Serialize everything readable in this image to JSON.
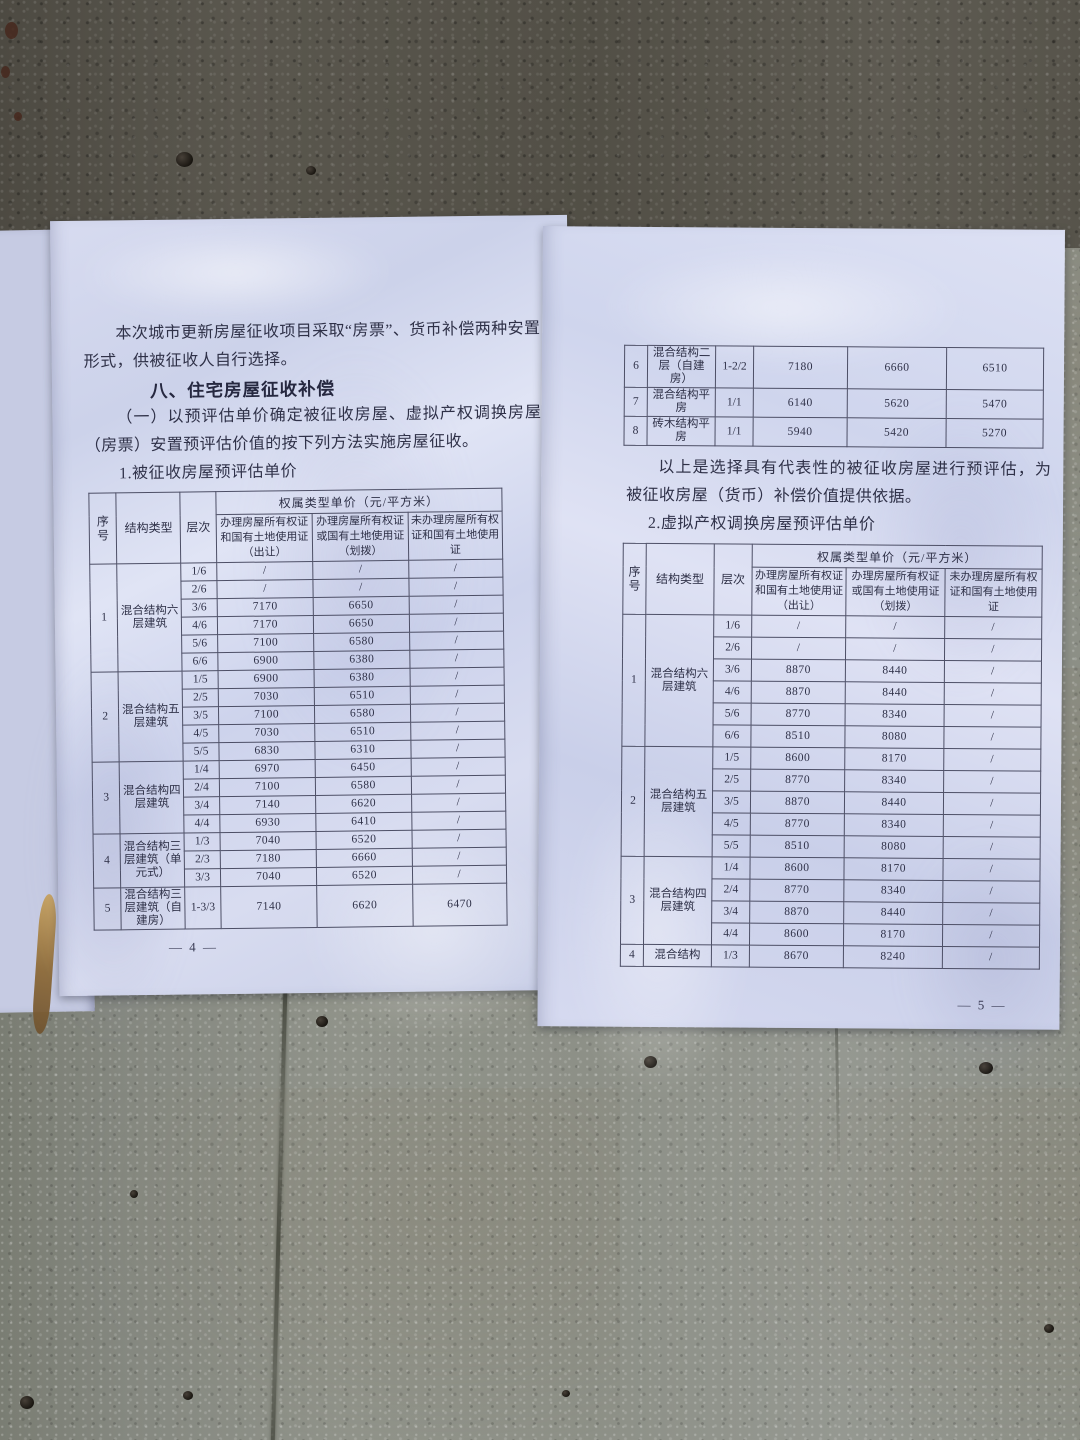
{
  "left_page": {
    "intro_paragraph": "本次城市更新房屋征收项目采取“房票”、货币补偿两种安置形式，供被征收人自行选择。",
    "section_heading": "八、住宅房屋征收补偿",
    "subsection_paragraph": "（一）以预评估单价确定被征收房屋、虚拟产权调换房屋（房票）安置预评估价值的按下列方法实施房屋征收。",
    "table1_title": "1.被征收房屋预评估单价",
    "page_number": "— 4 —"
  },
  "right_page": {
    "note_paragraph": "以上是选择具有代表性的被征收房屋进行预评估，为被征收房屋（货币）补偿价值提供依据。",
    "table2_title": "2.虚拟产权调换房屋预评估单价",
    "page_number": "— 5 —"
  },
  "table_header": {
    "seq": "序号",
    "type": "结构类型",
    "floor": "层次",
    "price_group": "权属类型单价（元/平方米）",
    "col_deed_both": "办理房屋所有权证和国有土地使用证（出让）",
    "col_deed_either": "办理房屋所有权证或国有土地使用证（划拨）",
    "col_deed_none": "未办理房屋所有权证和国有土地使用证"
  },
  "table1_groups": [
    {
      "seq": "1",
      "type": "混合结构六层建筑",
      "rows": [
        [
          "1/6",
          "/",
          "/",
          "/"
        ],
        [
          "2/6",
          "/",
          "/",
          "/"
        ],
        [
          "3/6",
          "7170",
          "6650",
          "/"
        ],
        [
          "4/6",
          "7170",
          "6650",
          "/"
        ],
        [
          "5/6",
          "7100",
          "6580",
          "/"
        ],
        [
          "6/6",
          "6900",
          "6380",
          "/"
        ]
      ]
    },
    {
      "seq": "2",
      "type": "混合结构五层建筑",
      "rows": [
        [
          "1/5",
          "6900",
          "6380",
          "/"
        ],
        [
          "2/5",
          "7030",
          "6510",
          "/"
        ],
        [
          "3/5",
          "7100",
          "6580",
          "/"
        ],
        [
          "4/5",
          "7030",
          "6510",
          "/"
        ],
        [
          "5/5",
          "6830",
          "6310",
          "/"
        ]
      ]
    },
    {
      "seq": "3",
      "type": "混合结构四层建筑",
      "rows": [
        [
          "1/4",
          "6970",
          "6450",
          "/"
        ],
        [
          "2/4",
          "7100",
          "6580",
          "/"
        ],
        [
          "3/4",
          "7140",
          "6620",
          "/"
        ],
        [
          "4/4",
          "6930",
          "6410",
          "/"
        ]
      ]
    },
    {
      "seq": "4",
      "type": "混合结构三层建筑（单元式）",
      "rows": [
        [
          "1/3",
          "7040",
          "6520",
          "/"
        ],
        [
          "2/3",
          "7180",
          "6660",
          "/"
        ],
        [
          "3/3",
          "7040",
          "6520",
          "/"
        ]
      ]
    },
    {
      "seq": "5",
      "type": "混合结构三层建筑（自建房）",
      "rows": [
        [
          "1-3/3",
          "7140",
          "6620",
          "6470"
        ]
      ]
    }
  ],
  "table1_continued_groups": [
    {
      "seq": "6",
      "type": "混合结构二层（自建房）",
      "rows": [
        [
          "1-2/2",
          "7180",
          "6660",
          "6510"
        ]
      ]
    },
    {
      "seq": "7",
      "type": "混合结构平房",
      "rows": [
        [
          "1/1",
          "6140",
          "5620",
          "5470"
        ]
      ]
    },
    {
      "seq": "8",
      "type": "砖木结构平房",
      "rows": [
        [
          "1/1",
          "5940",
          "5420",
          "5270"
        ]
      ]
    }
  ],
  "table2_groups": [
    {
      "seq": "1",
      "type": "混合结构六层建筑",
      "rows": [
        [
          "1/6",
          "/",
          "/",
          "/"
        ],
        [
          "2/6",
          "/",
          "/",
          "/"
        ],
        [
          "3/6",
          "8870",
          "8440",
          "/"
        ],
        [
          "4/6",
          "8870",
          "8440",
          "/"
        ],
        [
          "5/6",
          "8770",
          "8340",
          "/"
        ],
        [
          "6/6",
          "8510",
          "8080",
          "/"
        ]
      ]
    },
    {
      "seq": "2",
      "type": "混合结构五层建筑",
      "rows": [
        [
          "1/5",
          "8600",
          "8170",
          "/"
        ],
        [
          "2/5",
          "8770",
          "8340",
          "/"
        ],
        [
          "3/5",
          "8870",
          "8440",
          "/"
        ],
        [
          "4/5",
          "8770",
          "8340",
          "/"
        ],
        [
          "5/5",
          "8510",
          "8080",
          "/"
        ]
      ]
    },
    {
      "seq": "3",
      "type": "混合结构四层建筑",
      "rows": [
        [
          "1/4",
          "8600",
          "8170",
          "/"
        ],
        [
          "2/4",
          "8770",
          "8340",
          "/"
        ],
        [
          "3/4",
          "8870",
          "8440",
          "/"
        ],
        [
          "4/4",
          "8600",
          "8170",
          "/"
        ]
      ]
    },
    {
      "seq": "4",
      "type": "混合结构",
      "rows": [
        [
          "1/3",
          "8670",
          "8240",
          "/"
        ]
      ]
    }
  ]
}
